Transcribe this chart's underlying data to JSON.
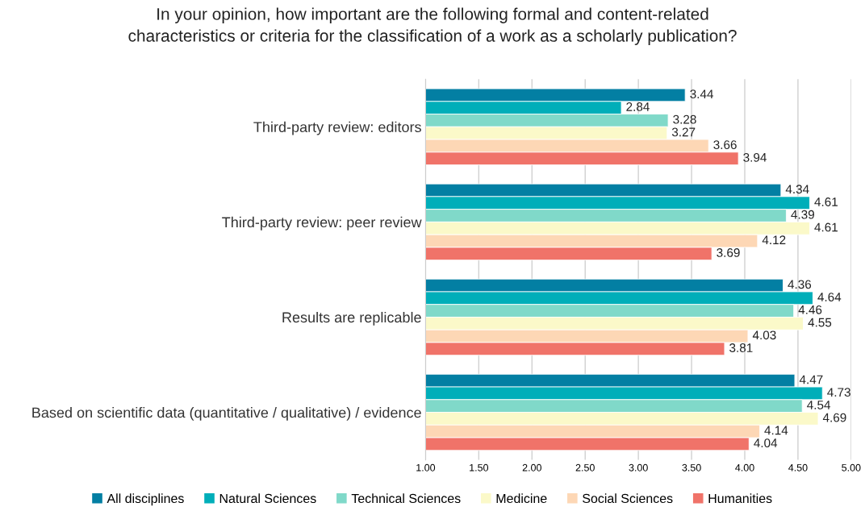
{
  "chart_data": {
    "type": "bar",
    "orientation": "horizontal",
    "title": "In your opinion, how important are the following formal and content-related\ncharacteristics or criteria for the classification of a work as a scholarly publication?",
    "categories": [
      "Third-party review: editors",
      "Third-party review: peer review",
      "Results are replicable",
      "Based on scientific data (quantitative / qualitative) / evidence"
    ],
    "series": [
      {
        "name": "All disciplines",
        "color": "#037fa3",
        "values": [
          3.44,
          4.34,
          4.36,
          4.47
        ],
        "value_labels": [
          "3.44",
          "4.34",
          "4.36",
          "4.47"
        ]
      },
      {
        "name": "Natural Sciences",
        "color": "#00aeb9",
        "values": [
          2.84,
          4.61,
          4.64,
          4.73
        ],
        "value_labels": [
          "2.84",
          "4.61",
          "4.64",
          "4.73"
        ]
      },
      {
        "name": "Technical Sciences",
        "color": "#80d9c9",
        "values": [
          3.28,
          4.39,
          4.46,
          4.54
        ],
        "value_labels": [
          "3.28",
          "4.39",
          "4.46",
          "4.54"
        ]
      },
      {
        "name": "Medicine",
        "color": "#fbf9c9",
        "values": [
          3.27,
          4.61,
          4.55,
          4.69
        ],
        "value_labels": [
          "3.27",
          "4.61",
          "4.55",
          "4.69"
        ]
      },
      {
        "name": "Social Sciences",
        "color": "#fdd7b5",
        "values": [
          3.66,
          4.12,
          4.03,
          4.14
        ],
        "value_labels": [
          "3.66",
          "4.12",
          "4.03",
          "4.14"
        ]
      },
      {
        "name": "Humanities",
        "color": "#f07369",
        "values": [
          3.94,
          3.69,
          3.81,
          4.04
        ],
        "value_labels": [
          "3.94",
          "3.69",
          "3.81",
          "4.04"
        ]
      }
    ],
    "xlim": [
      1,
      5
    ],
    "xticks": [
      {
        "value": 1,
        "label": "1.00"
      },
      {
        "value": 1.5,
        "label": "1.50"
      },
      {
        "value": 2,
        "label": "2.00"
      },
      {
        "value": 2.5,
        "label": "2.50"
      },
      {
        "value": 3,
        "label": "3.00"
      },
      {
        "value": 3.5,
        "label": "3.50"
      },
      {
        "value": 4,
        "label": "4.00"
      },
      {
        "value": 4.5,
        "label": "4.50"
      },
      {
        "value": 5,
        "label": "5.00"
      }
    ],
    "grid": "x",
    "legend": "bottom"
  }
}
